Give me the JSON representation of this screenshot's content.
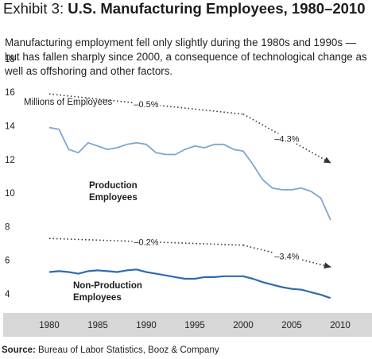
{
  "title_lead": "Exhibit 3: ",
  "title_main": "U.S. Manufacturing Employees, 1980–2010",
  "subtitle": "Manufacturing employment fell only slightly during the 1980s and 1990s — but has fallen sharply since 2000, a consequence of technological change as well as offshoring and other factors.",
  "source_label": "Source:",
  "source_text": " Bureau of Labor Statistics, Booz & Company",
  "chart_data": {
    "type": "line",
    "ylabel": "Millions of Employees",
    "xlim": [
      1978.5,
      2011.5
    ],
    "ylim": [
      3.5,
      18
    ],
    "x_ticks": [
      1980,
      1985,
      1990,
      1995,
      2000,
      2005,
      2010
    ],
    "y_ticks": [
      4,
      6,
      8,
      10,
      12,
      14,
      16,
      18
    ],
    "colors": {
      "line": "#7fa6cf",
      "line_dark": "#2f6bb0",
      "axis_band": "#d7d7d7",
      "trend": "#333333"
    },
    "series": [
      {
        "name": "Production Employees",
        "x": [
          1980,
          1981,
          1982,
          1983,
          1984,
          1985,
          1986,
          1987,
          1988,
          1989,
          1990,
          1991,
          1992,
          1993,
          1994,
          1995,
          1996,
          1997,
          1998,
          1999,
          2000,
          2001,
          2002,
          2003,
          2004,
          2005,
          2006,
          2007,
          2008,
          2009
        ],
        "values": [
          13.9,
          13.8,
          12.6,
          12.4,
          13.0,
          12.8,
          12.6,
          12.7,
          12.9,
          13.0,
          12.9,
          12.4,
          12.3,
          12.3,
          12.6,
          12.8,
          12.7,
          12.9,
          12.9,
          12.6,
          12.5,
          11.7,
          10.8,
          10.3,
          10.2,
          10.2,
          10.3,
          10.1,
          9.7,
          8.4
        ]
      },
      {
        "name": "Non-Production Employees",
        "x": [
          1980,
          1981,
          1982,
          1983,
          1984,
          1985,
          1986,
          1987,
          1988,
          1989,
          1990,
          1991,
          1992,
          1993,
          1994,
          1995,
          1996,
          1997,
          1998,
          1999,
          2000,
          2001,
          2002,
          2003,
          2004,
          2005,
          2006,
          2007,
          2008,
          2009
        ],
        "values": [
          5.3,
          5.35,
          5.3,
          5.2,
          5.35,
          5.4,
          5.35,
          5.3,
          5.4,
          5.45,
          5.3,
          5.2,
          5.1,
          5.0,
          4.9,
          4.9,
          5.0,
          5.0,
          5.05,
          5.05,
          5.05,
          4.9,
          4.7,
          4.55,
          4.4,
          4.3,
          4.25,
          4.1,
          3.95,
          3.75
        ]
      }
    ],
    "trends": [
      {
        "label": "–0.5%",
        "points": [
          [
            1980,
            15.9
          ],
          [
            2000,
            14.7
          ]
        ]
      },
      {
        "label": "–4.3%",
        "points": [
          [
            2000,
            14.7
          ],
          [
            2009,
            11.8
          ]
        ]
      },
      {
        "label": "–0.2%",
        "points": [
          [
            1980,
            7.3
          ],
          [
            2000,
            6.9
          ]
        ]
      },
      {
        "label": "–3.4%",
        "points": [
          [
            2000,
            6.9
          ],
          [
            2009,
            5.6
          ]
        ]
      }
    ]
  }
}
